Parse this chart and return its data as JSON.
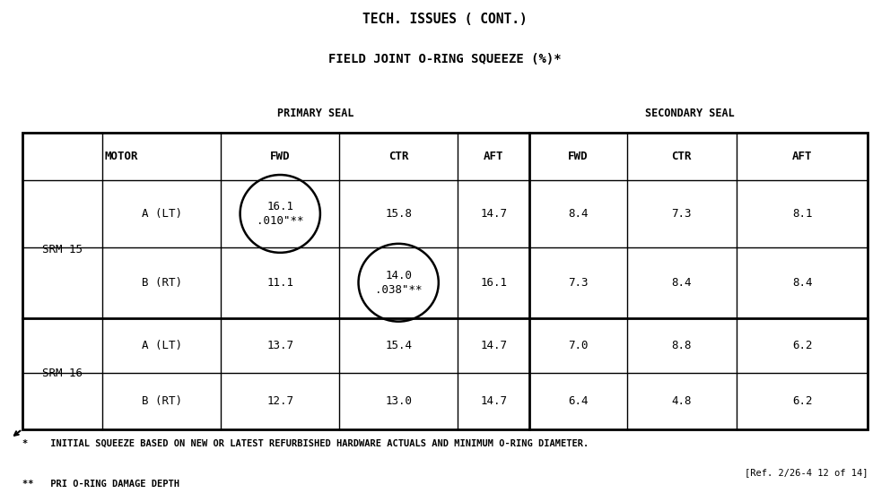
{
  "title1": "TECH. ISSUES ( CONT.)",
  "title2": "FIELD JOINT O-RING SQUEEZE (%)*",
  "primary_seal_label": "PRIMARY SEAL",
  "secondary_seal_label": "SECONDARY SEAL",
  "rows": [
    {
      "motor": "SRM 15",
      "sub": "A (LT)",
      "pri_fwd": "16.1\n.010\"**",
      "pri_ctr": "15.8",
      "pri_aft": "14.7",
      "sec_fwd": "8.4",
      "sec_ctr": "7.3",
      "sec_aft": "8.1",
      "circle_pri_fwd": true,
      "circle_pri_ctr": false
    },
    {
      "motor": "",
      "sub": "B (RT)",
      "pri_fwd": "11.1",
      "pri_ctr": "14.0\n.038\"**",
      "pri_aft": "16.1",
      "sec_fwd": "7.3",
      "sec_ctr": "8.4",
      "sec_aft": "8.4",
      "circle_pri_fwd": false,
      "circle_pri_ctr": true
    },
    {
      "motor": "SRM 16",
      "sub": "A (LT)",
      "pri_fwd": "13.7",
      "pri_ctr": "15.4",
      "pri_aft": "14.7",
      "sec_fwd": "7.0",
      "sec_ctr": "8.8",
      "sec_aft": "6.2",
      "circle_pri_fwd": false,
      "circle_pri_ctr": false
    },
    {
      "motor": "",
      "sub": "B (RT)",
      "pri_fwd": "12.7",
      "pri_ctr": "13.0",
      "pri_aft": "14.7",
      "sec_fwd": "6.4",
      "sec_ctr": "4.8",
      "sec_aft": "6.2",
      "circle_pri_fwd": false,
      "circle_pri_ctr": false
    }
  ],
  "footnote1": "*    INITIAL SQUEEZE BASED ON NEW OR LATEST REFURBISHED HARDWARE ACTUALS AND MINIMUM O-RING DIAMETER.",
  "footnote2": "**   PRI O-RING DAMAGE DEPTH",
  "ref": "[Ref. 2/26-4 12 of 14]",
  "bg_color": "#ffffff",
  "text_color": "#000000"
}
